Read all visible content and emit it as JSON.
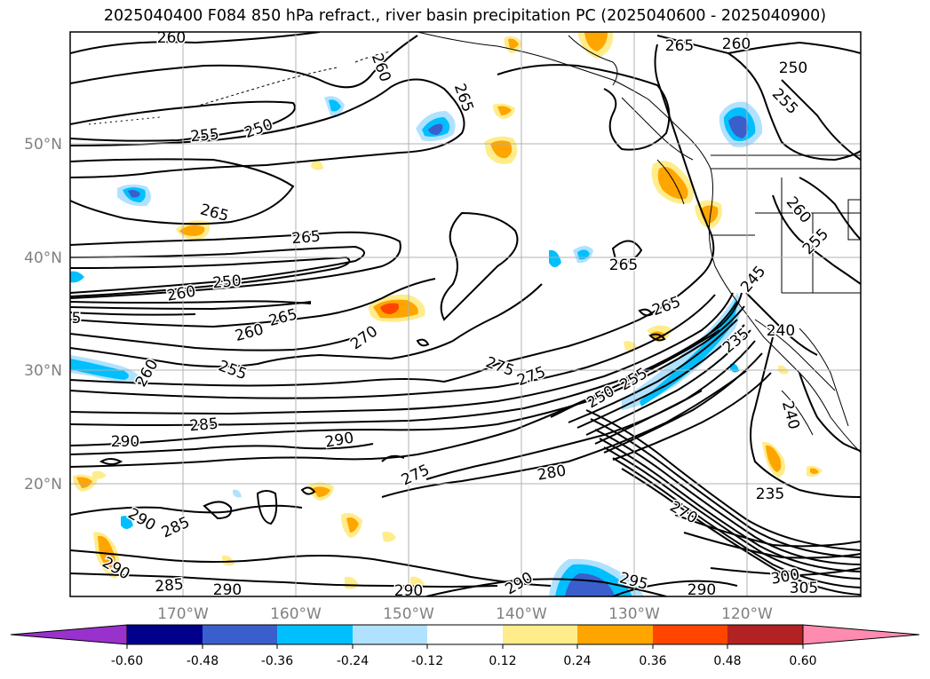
{
  "title": "2025040400 F084 850 hPa refract., river basin precipitation PC (2025040600 - 2025040900)",
  "map": {
    "lon_ticks": [
      "170°W",
      "160°W",
      "150°W",
      "140°W",
      "130°W",
      "120°W"
    ],
    "lat_ticks": [
      "50°N",
      "40°N",
      "30°N",
      "20°N"
    ],
    "gridline_color": "#b0b0b0",
    "tick_label_color": "#808080"
  },
  "contour_labels": [
    {
      "text": "260",
      "rot": 0
    },
    {
      "text": "265",
      "rot": 0
    },
    {
      "text": "260",
      "rot": 0
    },
    {
      "text": "250",
      "rot": 0
    },
    {
      "text": "260",
      "rot": 70
    },
    {
      "text": "265",
      "rot": 70
    },
    {
      "text": "255",
      "rot": -5
    },
    {
      "text": "250",
      "rot": -20
    },
    {
      "text": "255",
      "rot": 45
    },
    {
      "text": "265",
      "rot": 15
    },
    {
      "text": "265",
      "rot": -5
    },
    {
      "text": "260",
      "rot": -10
    },
    {
      "text": "250",
      "rot": -5
    },
    {
      "text": "5",
      "rot": 0
    },
    {
      "text": "265",
      "rot": -15
    },
    {
      "text": "260",
      "rot": -15
    },
    {
      "text": "270",
      "rot": -35
    },
    {
      "text": "255",
      "rot": 20
    },
    {
      "text": "260",
      "rot": -60
    },
    {
      "text": "275",
      "rot": 20
    },
    {
      "text": "275",
      "rot": -20
    },
    {
      "text": "265",
      "rot": 0
    },
    {
      "text": "265",
      "rot": -20
    },
    {
      "text": "250",
      "rot": -30
    },
    {
      "text": "255",
      "rot": -30
    },
    {
      "text": "260",
      "rot": 50
    },
    {
      "text": "255",
      "rot": -45
    },
    {
      "text": "245",
      "rot": -50
    },
    {
      "text": "240",
      "rot": 0
    },
    {
      "text": "235",
      "rot": -40
    },
    {
      "text": "285",
      "rot": -5
    },
    {
      "text": "290",
      "rot": 0
    },
    {
      "text": "290",
      "rot": -10
    },
    {
      "text": "275",
      "rot": -25
    },
    {
      "text": "280",
      "rot": -10
    },
    {
      "text": "240",
      "rot": 75
    },
    {
      "text": "235",
      "rot": 0
    },
    {
      "text": "270",
      "rot": 30
    },
    {
      "text": "290",
      "rot": 30
    },
    {
      "text": "285",
      "rot": -25
    },
    {
      "text": "290",
      "rot": 30
    },
    {
      "text": "285",
      "rot": -5
    },
    {
      "text": "290",
      "rot": 0
    },
    {
      "text": "290",
      "rot": 0
    },
    {
      "text": "290",
      "rot": -30
    },
    {
      "text": "295",
      "rot": 15
    },
    {
      "text": "290",
      "rot": 0
    },
    {
      "text": "300",
      "rot": -10
    },
    {
      "text": "305",
      "rot": 0
    }
  ],
  "colorbar": {
    "ticks": [
      "-0.60",
      "-0.48",
      "-0.36",
      "-0.24",
      "-0.12",
      "0.12",
      "0.24",
      "0.36",
      "0.48",
      "0.60"
    ],
    "colors": [
      "#9932cc",
      "#00008b",
      "#3a5fcd",
      "#00bfff",
      "#b0e2ff",
      "#ffffff",
      "#ffec8b",
      "#ffa500",
      "#ff4500",
      "#b22222",
      "#ff8cb0"
    ]
  }
}
